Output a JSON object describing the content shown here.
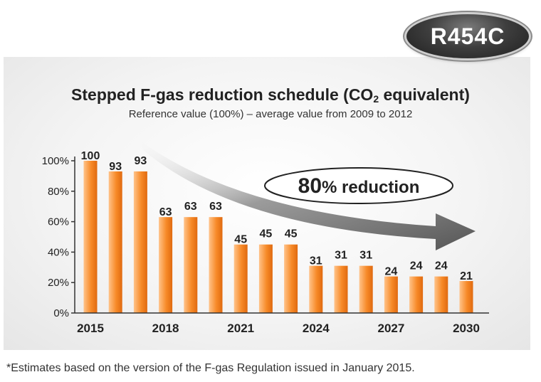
{
  "badge": {
    "label": "R454C"
  },
  "title": {
    "main": "Stepped F-gas reduction schedule (CO",
    "sub": "2",
    "end": " equivalent)"
  },
  "subtitle": "Reference value (100%) – average value from 2009 to 2012",
  "callout": {
    "number": "80",
    "text": "% reduction"
  },
  "footnote": "*Estimates based on the version of the F-gas Regulation issued in January 2015.",
  "colors": {
    "bar_light": "#ffc38a",
    "bar_main": "#f78a28",
    "bar_dark": "#e06a10",
    "arrow": "#6e6e6e",
    "axis": "#333333"
  },
  "chart_data": {
    "type": "bar",
    "categories": [
      "2015",
      "2016",
      "2017",
      "2018",
      "2019",
      "2020",
      "2021",
      "2022",
      "2023",
      "2024",
      "2025",
      "2026",
      "2027",
      "2028",
      "2029",
      "2030"
    ],
    "values": [
      100,
      93,
      93,
      63,
      63,
      63,
      45,
      45,
      45,
      31,
      31,
      31,
      24,
      24,
      24,
      21
    ],
    "x_tick_labels": [
      "2015",
      "",
      "",
      "2018",
      "",
      "",
      "2021",
      "",
      "",
      "2024",
      "",
      "",
      "2027",
      "",
      "",
      "2030"
    ],
    "y_ticks": [
      "0%",
      "20%",
      "40%",
      "60%",
      "80%",
      "100%"
    ],
    "ylim": [
      0,
      100
    ],
    "grid": false
  }
}
